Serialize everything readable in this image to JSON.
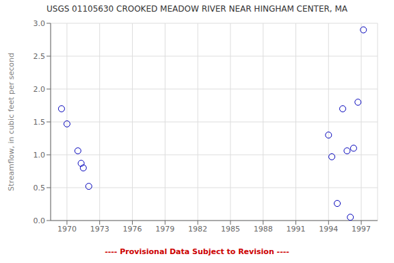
{
  "chart_data": {
    "type": "scatter",
    "title": "USGS 01105630 CROOKED MEADOW RIVER NEAR HINGHAM CENTER, MA",
    "ylabel": "Streamflow, in cubic feet per second",
    "annotations": [
      {
        "text": "---- Provisional Data Subject to Revision ----",
        "color": "#cc0000"
      }
    ],
    "x": [
      1969.5,
      1970,
      1971,
      1971.3,
      1971.5,
      1972,
      1994,
      1994.3,
      1994.8,
      1995.3,
      1995.7,
      1996.0,
      1996.3,
      1996.7,
      1997.2
    ],
    "values": [
      1.7,
      1.47,
      1.06,
      0.87,
      0.8,
      0.52,
      1.3,
      0.97,
      0.26,
      1.7,
      1.06,
      0.05,
      1.1,
      1.8,
      2.9
    ],
    "color": "#0000bb",
    "marker": "circle",
    "xlim": [
      1968.5,
      1998.5
    ],
    "ylim": [
      0.0,
      3.0
    ],
    "xticks": [
      1970,
      1973,
      1976,
      1979,
      1982,
      1985,
      1988,
      1991,
      1994,
      1997
    ],
    "yticks": [
      {
        "value": 0,
        "label": "0.0"
      },
      0.5,
      {
        "value": 1,
        "label": "1.0"
      },
      1.5,
      {
        "value": 2,
        "label": "2.0"
      },
      2.5,
      {
        "value": 3,
        "label": "3.0"
      }
    ],
    "grid": true
  }
}
